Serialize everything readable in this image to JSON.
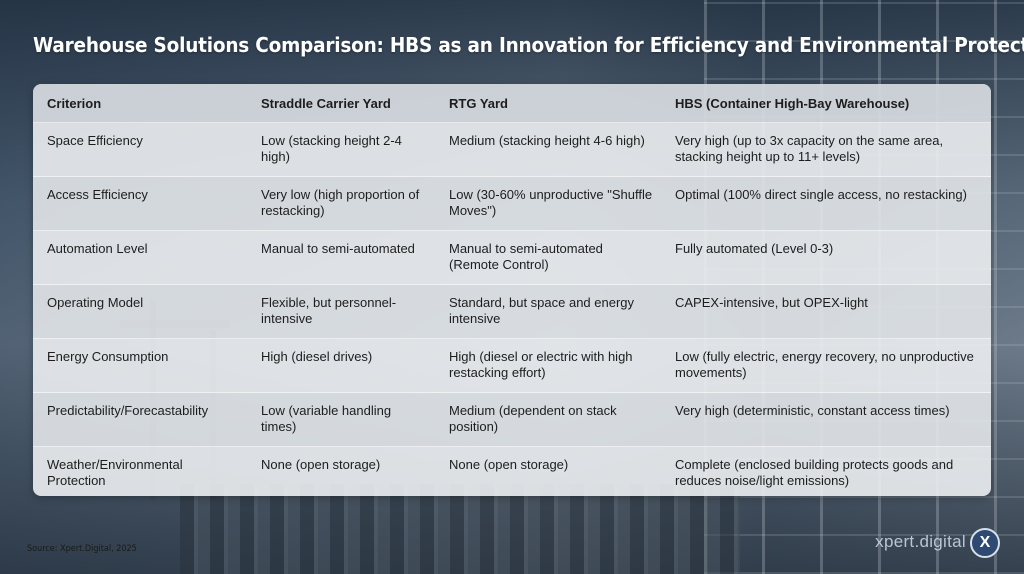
{
  "title": "Warehouse Solutions Comparison: HBS as an Innovation for Efficiency and Environmental Protection",
  "table": {
    "headers": [
      "Criterion",
      "Straddle Carrier Yard",
      "RTG Yard",
      "HBS (Container High-Bay Warehouse)"
    ],
    "rows": [
      [
        "Space Efficiency",
        "Low (stacking height 2-4 high)",
        "Medium (stacking height 4-6 high)",
        "Very high (up to 3x capacity on the same area, stacking height up to 11+ levels)"
      ],
      [
        "Access Efficiency",
        "Very low (high proportion of restacking)",
        "Low (30-60% unproductive \"Shuffle Moves\")",
        "Optimal (100% direct single access, no restacking)"
      ],
      [
        "Automation Level",
        "Manual to semi-automated",
        "Manual to semi-automated (Remote Control)",
        "Fully automated (Level 0-3)"
      ],
      [
        "Operating Model",
        "Flexible, but personnel-intensive",
        "Standard, but space and energy intensive",
        "CAPEX-intensive, but OPEX-light"
      ],
      [
        "Energy Consumption",
        "High (diesel drives)",
        "High (diesel or electric with high restacking effort)",
        "Low (fully electric, energy recovery, no unproductive movements)"
      ],
      [
        "Predictability/Forecastability",
        "Low (variable handling times)",
        "Medium (dependent on stack position)",
        "Very high (deterministic, constant access times)"
      ],
      [
        "Weather/Environmental Protection",
        "None (open storage)",
        "None (open storage)",
        "Complete (enclosed building protects goods and reduces noise/light emissions)"
      ]
    ]
  },
  "source": "Source: Xpert.Digital, 2025",
  "brand": {
    "name": "xpert.digital",
    "badge": "X",
    "badge_color": "#2e4a73"
  }
}
